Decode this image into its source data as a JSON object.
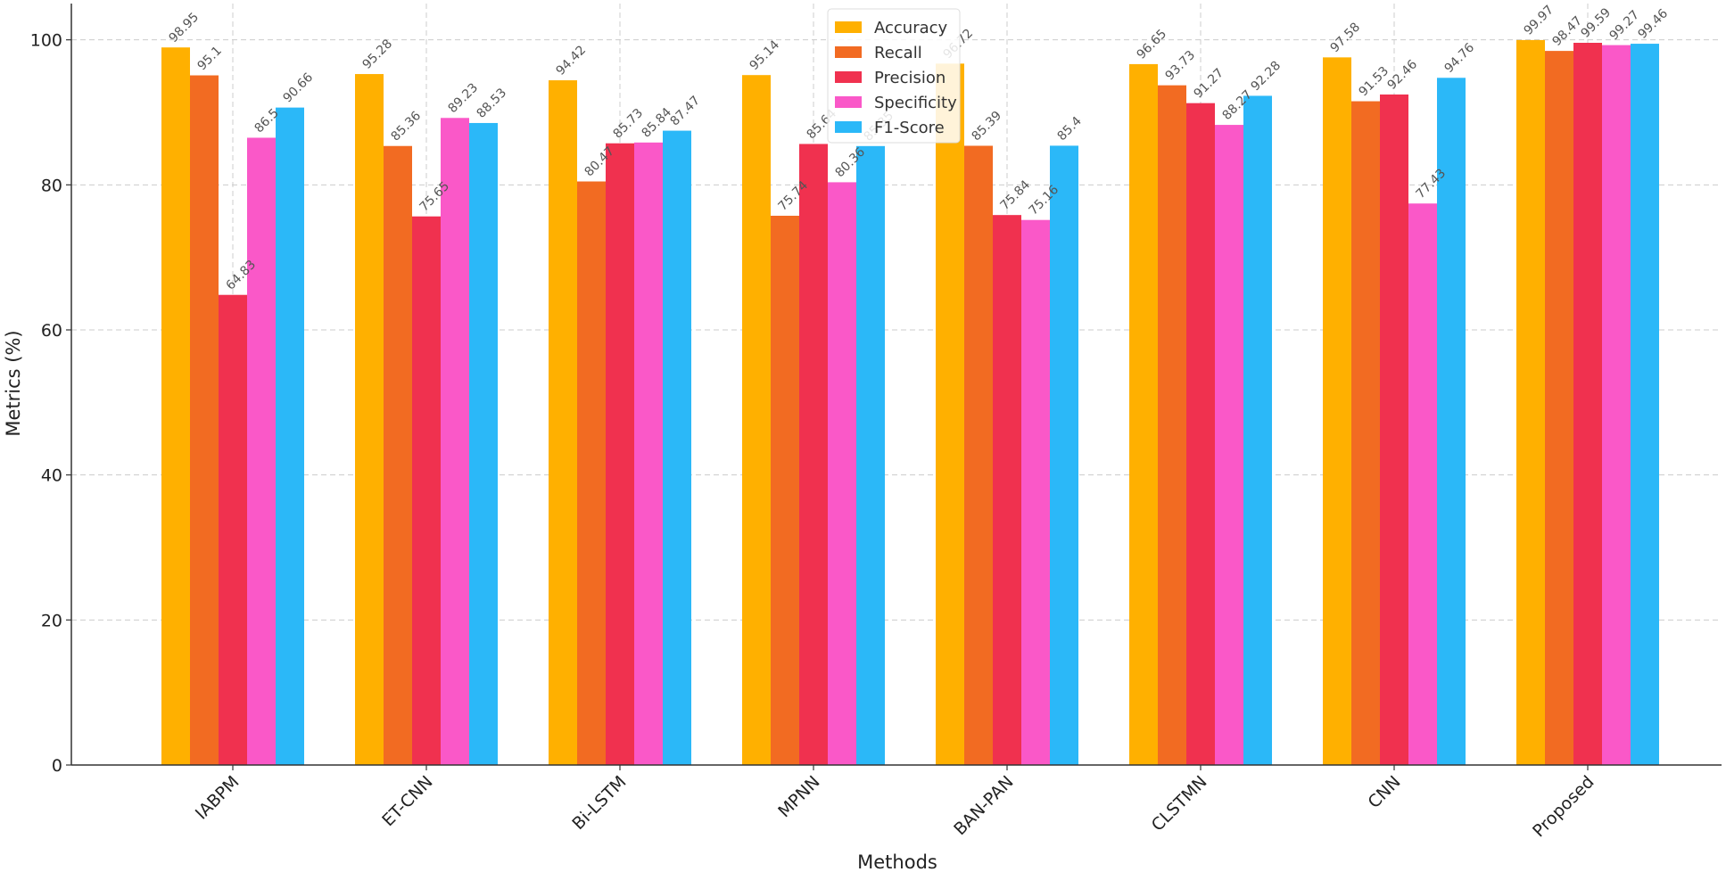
{
  "chart_data": {
    "type": "bar",
    "title": "",
    "xlabel": "Methods",
    "ylabel": "Metrics (%)",
    "ylim": [
      0,
      105
    ],
    "yticks": [
      0,
      20,
      40,
      60,
      80,
      100
    ],
    "grid": true,
    "legend_position": "top-center",
    "categories": [
      "IABPM",
      "ET-CNN",
      "Bi-LSTM",
      "MPNN",
      "BAN-PAN",
      "CLSTMN",
      "CNN",
      "Proposed"
    ],
    "series": [
      {
        "name": "Accuracy",
        "color": "#FFB000",
        "values": [
          98.95,
          95.28,
          94.42,
          95.14,
          96.72,
          96.65,
          97.58,
          99.97
        ],
        "labels": [
          "98.95",
          "95.28",
          "94.42",
          "95.14",
          "96.72",
          "96.65",
          "97.58",
          "99.97"
        ]
      },
      {
        "name": "Recall",
        "color": "#F26B22",
        "values": [
          95.1,
          85.36,
          80.47,
          75.74,
          85.39,
          93.73,
          91.53,
          98.47
        ],
        "labels": [
          "95.1",
          "85.36",
          "80.47",
          "75.74",
          "85.39",
          "93.73",
          "91.53",
          "98.47"
        ]
      },
      {
        "name": "Precision",
        "color": "#F0314F",
        "values": [
          64.83,
          75.65,
          85.73,
          85.64,
          75.84,
          91.27,
          92.46,
          99.59
        ],
        "labels": [
          "64.83",
          "75.65",
          "85.73",
          "85.64",
          "75.84",
          "91.27",
          "92.46",
          "99.59"
        ]
      },
      {
        "name": "Specificity",
        "color": "#FA58C8",
        "values": [
          86.5,
          89.23,
          85.84,
          80.36,
          75.16,
          88.27,
          77.43,
          99.27
        ],
        "labels": [
          "86.5",
          "89.23",
          "85.84",
          "80.36",
          "75.16",
          "88.27",
          "77.43",
          "99.27"
        ]
      },
      {
        "name": "F1-Score",
        "color": "#2BB8F8",
        "values": [
          90.66,
          88.53,
          87.47,
          85.35,
          85.4,
          92.28,
          94.76,
          99.46
        ],
        "labels": [
          "90.66",
          "88.53",
          "87.47",
          "85.35",
          "85.4",
          "92.28",
          "94.76",
          "99.46"
        ]
      }
    ]
  }
}
